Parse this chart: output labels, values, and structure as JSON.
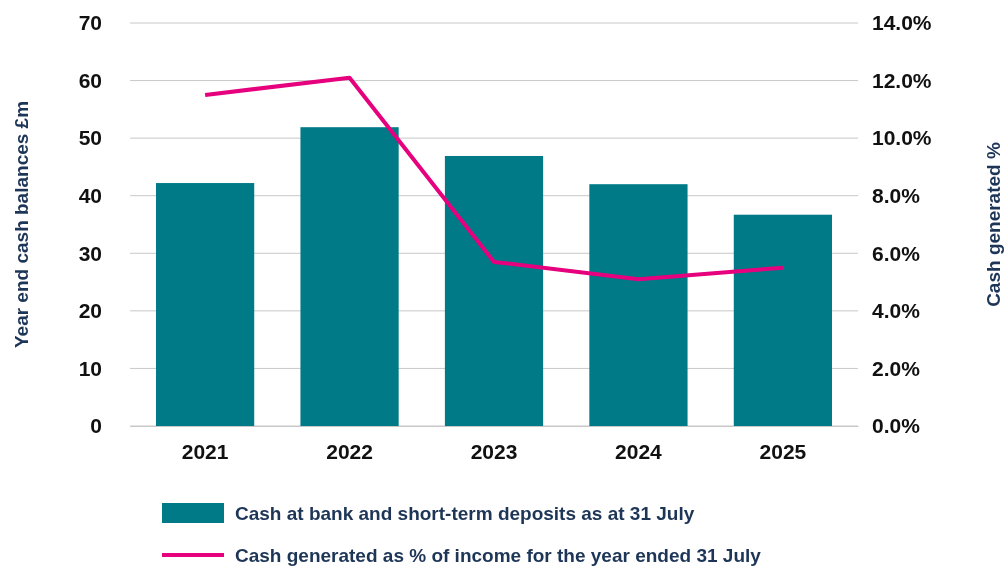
{
  "chart_data": {
    "type": "bar",
    "categories": [
      "2021",
      "2022",
      "2023",
      "2024",
      "2025"
    ],
    "series": [
      {
        "name": "Cash at bank and short-term deposits as at 31 July",
        "color": "#007a87",
        "values": [
          42.2,
          51.9,
          46.9,
          42.0,
          36.7
        ]
      },
      {
        "name": "Cash generated as % of income for the year ended 31 July",
        "color": "#e6007e",
        "type": "line",
        "axis": "y2",
        "values": [
          11.5,
          12.1,
          5.7,
          5.1,
          5.5
        ]
      }
    ],
    "ylabel": "Year end cash balances £m",
    "y2label": "Cash generated %",
    "ylim": [
      0,
      70
    ],
    "yticks": [
      0,
      10,
      20,
      30,
      40,
      50,
      60,
      70
    ],
    "y2lim": [
      0,
      14
    ],
    "y2ticks": [
      {
        "value": 0,
        "label": "0.0%"
      },
      {
        "value": 2,
        "label": "2.0%"
      },
      {
        "value": 4,
        "label": "4.0%"
      },
      {
        "value": 6,
        "label": "6.0%"
      },
      {
        "value": 8,
        "label": "8.0%"
      },
      {
        "value": 10,
        "label": "10.0%"
      },
      {
        "value": 12,
        "label": "12.0%"
      },
      {
        "value": 14,
        "label": "14.0%"
      }
    ],
    "grid": "y",
    "legend": "bottom",
    "marker": "none",
    "line_style": "solid"
  }
}
